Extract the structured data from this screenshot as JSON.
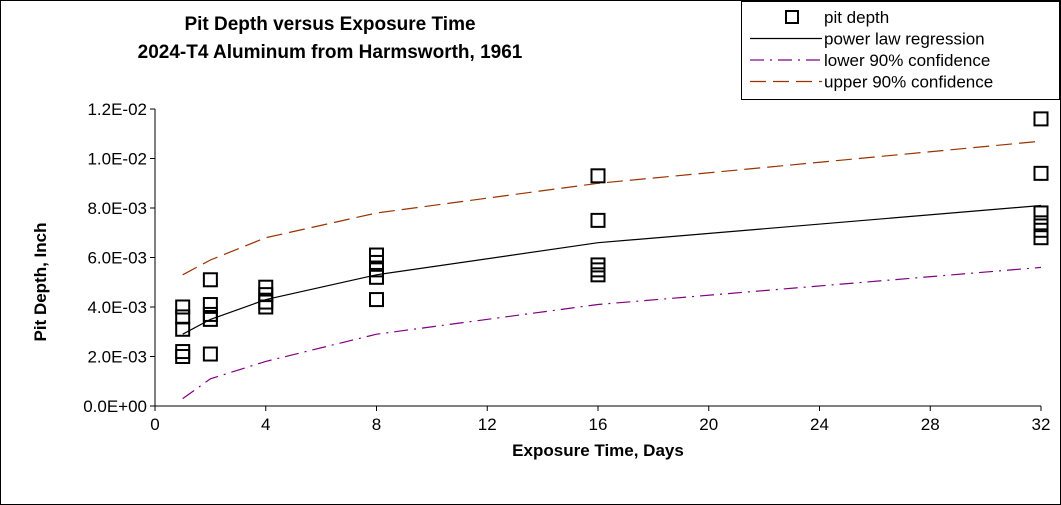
{
  "chart_data": {
    "type": "scatter",
    "title": [
      "Pit Depth versus Exposure Time",
      "2024-T4 Aluminum from Harmsworth, 1961"
    ],
    "xlabel": "Exposure Time, Days",
    "ylabel": "Pit Depth, Inch",
    "xlim": [
      0,
      32
    ],
    "ylim": [
      0,
      0.012
    ],
    "x_ticks": [
      0,
      4,
      8,
      12,
      16,
      20,
      24,
      28,
      32
    ],
    "x_tick_labels": [
      "0",
      "4",
      "8",
      "12",
      "16",
      "20",
      "24",
      "28",
      "32"
    ],
    "y_ticks": [
      0,
      0.002,
      0.004,
      0.006,
      0.008,
      0.01,
      0.012
    ],
    "y_tick_labels": [
      "0.0E+00",
      "2.0E-03",
      "4.0E-03",
      "6.0E-03",
      "8.0E-03",
      "1.0E-02",
      "1.2E-02"
    ],
    "grid": false,
    "legend_position": "top-right",
    "series": [
      {
        "name": "pit depth",
        "kind": "markers",
        "marker": "open-square",
        "color": "#000000",
        "points": [
          [
            1,
            0.004
          ],
          [
            1,
            0.0036
          ],
          [
            1,
            0.0031
          ],
          [
            1,
            0.0022
          ],
          [
            1,
            0.002
          ],
          [
            2,
            0.0051
          ],
          [
            2,
            0.0041
          ],
          [
            2,
            0.0037
          ],
          [
            2,
            0.0035
          ],
          [
            2,
            0.0021
          ],
          [
            4,
            0.0048
          ],
          [
            4,
            0.0045
          ],
          [
            4,
            0.0042
          ],
          [
            4,
            0.004
          ],
          [
            8,
            0.0061
          ],
          [
            8,
            0.0058
          ],
          [
            8,
            0.0055
          ],
          [
            8,
            0.0052
          ],
          [
            8,
            0.0043
          ],
          [
            16,
            0.0093
          ],
          [
            16,
            0.0075
          ],
          [
            16,
            0.0057
          ],
          [
            16,
            0.0055
          ],
          [
            16,
            0.0053
          ],
          [
            32,
            0.0116
          ],
          [
            32,
            0.0094
          ],
          [
            32,
            0.0078
          ],
          [
            32,
            0.0074
          ],
          [
            32,
            0.0071
          ],
          [
            32,
            0.0068
          ]
        ]
      },
      {
        "name": "power law regression",
        "kind": "line",
        "dash": "solid",
        "color": "#000000",
        "points": [
          [
            1,
            0.0029
          ],
          [
            2,
            0.0035
          ],
          [
            4,
            0.0043
          ],
          [
            8,
            0.0053
          ],
          [
            16,
            0.0066
          ],
          [
            32,
            0.0081
          ]
        ]
      },
      {
        "name": "lower 90% confidence",
        "kind": "line",
        "dash": "dash-dot",
        "color": "#800080",
        "points": [
          [
            1,
            0.0003
          ],
          [
            2,
            0.0011
          ],
          [
            4,
            0.0018
          ],
          [
            8,
            0.0029
          ],
          [
            16,
            0.0041
          ],
          [
            32,
            0.0056
          ]
        ]
      },
      {
        "name": "upper 90% confidence",
        "kind": "line",
        "dash": "dash",
        "color": "#993300",
        "points": [
          [
            1,
            0.0053
          ],
          [
            2,
            0.0059
          ],
          [
            4,
            0.0068
          ],
          [
            8,
            0.0078
          ],
          [
            16,
            0.009
          ],
          [
            32,
            0.0107
          ]
        ]
      }
    ]
  }
}
